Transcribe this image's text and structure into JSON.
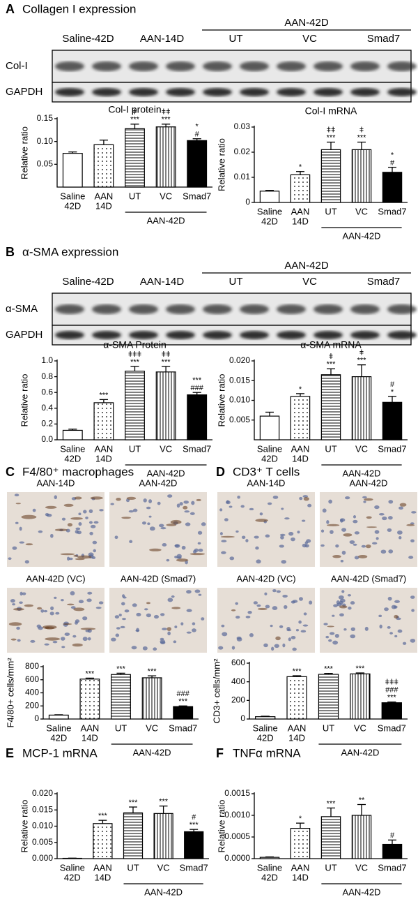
{
  "panels": [
    {
      "letter": "A",
      "title": "Collagen I expression"
    },
    {
      "letter": "B",
      "title": "α-SMA expression"
    },
    {
      "letter": "C",
      "title": "F4/80⁺ macrophages"
    },
    {
      "letter": "D",
      "title": "CD3⁺ T cells"
    },
    {
      "letter": "E",
      "title": "MCP-1 mRNA"
    },
    {
      "letter": "F",
      "title": "TNFα mRNA"
    }
  ],
  "blots": [
    {
      "lanes": [
        "Saline-42D",
        "AAN-14D",
        "UT",
        "VC",
        "Smad7"
      ],
      "group": "AAN-42D",
      "rows": [
        "Col-I",
        "GAPDH"
      ]
    },
    {
      "lanes": [
        "Saline-42D",
        "AAN-14D",
        "UT",
        "VC",
        "Smad7"
      ],
      "group": "AAN-42D",
      "rows": [
        "α-SMA",
        "GAPDH"
      ]
    }
  ],
  "micrographs": [
    {
      "labels": [
        "AAN-14D",
        "AAN-42D",
        "AAN-42D (VC)",
        "AAN-42D (Smad7)"
      ]
    },
    {
      "labels": [
        "AAN-14D",
        "AAN-42D",
        "AAN-42D (VC)",
        "AAN-42D (Smad7)"
      ]
    }
  ],
  "chart_data": [
    {
      "type": "bar",
      "title": "Col-I protein",
      "ylabel": "Relative ratio",
      "categories": [
        [
          "Saline",
          "42D"
        ],
        [
          "AAN",
          "14D"
        ],
        [
          "UT"
        ],
        [
          "VC"
        ],
        [
          "Smad7"
        ]
      ],
      "group_label": "AAN-42D",
      "values": [
        0.074,
        0.093,
        0.128,
        0.132,
        0.102
      ],
      "errors": [
        0.003,
        0.01,
        0.01,
        0.006,
        0.004
      ],
      "annotations": [
        [],
        [],
        [
          "ǂ",
          "***"
        ],
        [
          "ǂǂ",
          "***"
        ],
        [
          "*",
          "#"
        ]
      ],
      "bar_fills": [
        "white",
        "dots",
        "hlines",
        "vlines",
        "black"
      ],
      "ylim": [
        0,
        0.15
      ],
      "yticks": [
        0.05,
        {
          "value": 0.1,
          "label": "0.10"
        },
        0.15
      ]
    },
    {
      "type": "bar",
      "title": "Col-I mRNA",
      "ylabel": "Relative ratio",
      "categories": [
        [
          "Saline",
          "42D"
        ],
        [
          "AAN",
          "14D"
        ],
        [
          "UT"
        ],
        [
          "VC"
        ],
        [
          "Smad7"
        ]
      ],
      "group_label": "AAN-42D",
      "values": [
        0.0045,
        0.011,
        0.021,
        0.021,
        0.012
      ],
      "errors": [
        0.0003,
        0.0013,
        0.003,
        0.003,
        0.002
      ],
      "annotations": [
        [],
        [
          "*"
        ],
        [
          "ǂǂ",
          "***"
        ],
        [
          "ǂ",
          "***"
        ],
        [
          "*",
          "#"
        ]
      ],
      "bar_fills": [
        "white",
        "dots",
        "hlines",
        "vlines",
        "black"
      ],
      "ylim": [
        0,
        0.03
      ],
      "yticks": [
        0,
        0.01,
        0.02,
        0.03
      ]
    },
    {
      "type": "bar",
      "title": "α-SMA Protein",
      "ylabel": "Relative ratio",
      "categories": [
        [
          "Saline",
          "42D"
        ],
        [
          "AAN",
          "14D"
        ],
        [
          "UT"
        ],
        [
          "VC"
        ],
        [
          "Smad7"
        ]
      ],
      "group_label": "AAN-42D",
      "values": [
        0.12,
        0.47,
        0.87,
        0.86,
        0.57
      ],
      "errors": [
        0.015,
        0.04,
        0.06,
        0.07,
        0.03
      ],
      "annotations": [
        [],
        [
          "***"
        ],
        [
          "ǂǂǂ",
          "***"
        ],
        [
          "ǂǂ",
          "***"
        ],
        [
          "***",
          "###"
        ]
      ],
      "bar_fills": [
        "white",
        "dots",
        "hlines",
        "vlines",
        "black"
      ],
      "ylim": [
        0,
        1.0
      ],
      "yticks": [
        {
          "value": 0,
          "label": "0.0"
        },
        0.2,
        0.4,
        0.6,
        0.8,
        {
          "value": 1.0,
          "label": "1.0"
        }
      ]
    },
    {
      "type": "bar",
      "title": "α-SMA mRNA",
      "ylabel": "Relative ratio",
      "categories": [
        [
          "Saline",
          "42D"
        ],
        [
          "AAN",
          "14D"
        ],
        [
          "UT"
        ],
        [
          "VC"
        ],
        [
          "Smad7"
        ]
      ],
      "group_label": "AAN-42D",
      "values": [
        0.006,
        0.011,
        0.0165,
        0.016,
        0.0095
      ],
      "errors": [
        0.001,
        0.0007,
        0.0015,
        0.003,
        0.0015
      ],
      "annotations": [
        [],
        [
          "*"
        ],
        [
          "ǂ",
          "***"
        ],
        [
          "ǂ",
          "***"
        ],
        [
          "#",
          "*"
        ]
      ],
      "bar_fills": [
        "white",
        "dots",
        "hlines",
        "vlines",
        "black"
      ],
      "ylim": [
        0,
        0.02
      ],
      "yticks": [
        0.005,
        {
          "value": 0.01,
          "label": "0.010"
        },
        0.015,
        {
          "value": 0.02,
          "label": "0.020"
        }
      ]
    },
    {
      "type": "bar",
      "ylabel": "F4/80+ cells/mm²",
      "categories": [
        [
          "Saline",
          "42D"
        ],
        [
          "AAN",
          "14D"
        ],
        [
          "UT"
        ],
        [
          "VC"
        ],
        [
          "Smad7"
        ]
      ],
      "group_label": "AAN-42D",
      "values": [
        60,
        610,
        680,
        630,
        190
      ],
      "errors": [
        5,
        15,
        20,
        30,
        10
      ],
      "annotations": [
        [],
        [
          "***"
        ],
        [
          "***"
        ],
        [
          "***"
        ],
        [
          "###",
          "***"
        ]
      ],
      "bar_fills": [
        "white",
        "dots",
        "hlines",
        "vlines",
        "black"
      ],
      "ylim": [
        0,
        800
      ],
      "yticks": [
        0,
        200,
        400,
        600,
        800
      ]
    },
    {
      "type": "bar",
      "ylabel": "CD3+ cells/mm²",
      "categories": [
        [
          "Saline",
          "42D"
        ],
        [
          "AAN",
          "14D"
        ],
        [
          "UT"
        ],
        [
          "VC"
        ],
        [
          "Smad7"
        ]
      ],
      "group_label": "AAN-42D",
      "values": [
        25,
        455,
        480,
        485,
        175
      ],
      "errors": [
        5,
        10,
        10,
        10,
        8
      ],
      "annotations": [
        [],
        [
          "***"
        ],
        [
          "***"
        ],
        [
          "***"
        ],
        [
          "ǂǂǂ",
          "###",
          "***"
        ]
      ],
      "bar_fills": [
        "white",
        "dots",
        "hlines",
        "vlines",
        "black"
      ],
      "ylim": [
        0,
        600
      ],
      "yticks": [
        0,
        200,
        400,
        600
      ]
    },
    {
      "type": "bar",
      "ylabel": "Relative ratio",
      "categories": [
        [
          "Saline",
          "42D"
        ],
        [
          "AAN",
          "14D"
        ],
        [
          "UT"
        ],
        [
          "VC"
        ],
        [
          "Smad7"
        ]
      ],
      "group_label": "AAN-42D",
      "values": [
        0.0001,
        0.0108,
        0.0141,
        0.0139,
        0.0083
      ],
      "errors": [
        5e-05,
        0.001,
        0.0018,
        0.0023,
        0.0007
      ],
      "annotations": [
        [],
        [
          "***"
        ],
        [
          "***"
        ],
        [
          "***"
        ],
        [
          "#",
          "***"
        ]
      ],
      "bar_fills": [
        "white",
        "dots",
        "hlines",
        "vlines",
        "black"
      ],
      "ylim": [
        0,
        0.02
      ],
      "yticks": [
        {
          "value": 0,
          "label": "0.000"
        },
        0.005,
        {
          "value": 0.01,
          "label": "0.010"
        },
        0.015,
        {
          "value": 0.02,
          "label": "0.020"
        }
      ]
    },
    {
      "type": "bar",
      "ylabel": "Relative ratio",
      "categories": [
        [
          "Saline",
          "42D"
        ],
        [
          "AAN",
          "14D"
        ],
        [
          "UT"
        ],
        [
          "VC"
        ],
        [
          "Smad7"
        ]
      ],
      "group_label": "AAN-42D",
      "values": [
        3e-05,
        0.0007,
        0.00097,
        0.001,
        0.00033
      ],
      "errors": [
        1e-05,
        0.00012,
        0.0002,
        0.00025,
        0.0001
      ],
      "annotations": [
        [],
        [
          "*"
        ],
        [
          "***"
        ],
        [
          "**"
        ],
        [
          "#"
        ]
      ],
      "bar_fills": [
        "white",
        "dots",
        "hlines",
        "vlines",
        "black"
      ],
      "ylim": [
        0,
        0.0015
      ],
      "yticks": [
        {
          "value": 0,
          "label": "0.0000"
        },
        0.0005,
        {
          "value": 0.001,
          "label": "0.0010"
        },
        0.0015
      ]
    }
  ]
}
